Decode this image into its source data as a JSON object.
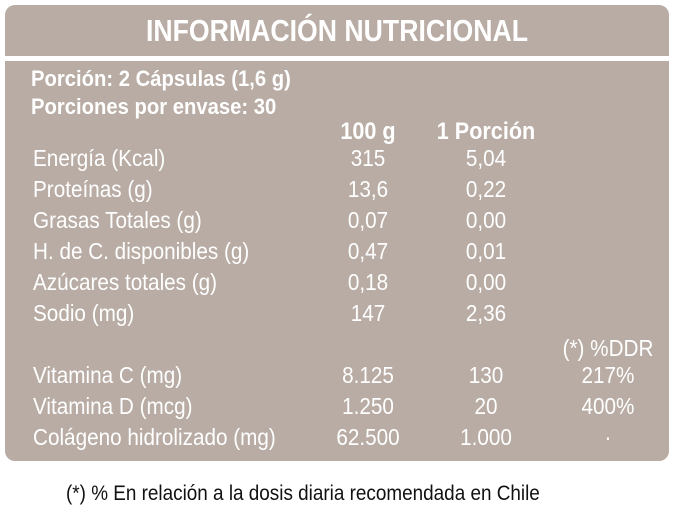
{
  "title": "INFORMACIÓN NUTRICIONAL",
  "serving_size": "Porción: 2 Cápsulas (1,6 g)",
  "servings_per_container": "Porciones por envase: 30",
  "columns": {
    "per_100g": "100 g",
    "per_serving": "1 Porción",
    "ddr": "(*) %DDR"
  },
  "nutrients": [
    {
      "name": "Energía (Kcal)",
      "per_100g": "315",
      "per_serving": "5,04"
    },
    {
      "name": "Proteínas (g)",
      "per_100g": "13,6",
      "per_serving": "0,22"
    },
    {
      "name": "Grasas Totales (g)",
      "per_100g": "0,07",
      "per_serving": "0,00"
    },
    {
      "name": "H. de C. disponibles (g)",
      "per_100g": "0,47",
      "per_serving": "0,01"
    },
    {
      "name": "Azúcares totales (g)",
      "per_100g": "0,18",
      "per_serving": "0,00"
    },
    {
      "name": "Sodio (mg)",
      "per_100g": "147",
      "per_serving": "2,36"
    }
  ],
  "micronutrients": [
    {
      "name": "Vitamina C (mg)",
      "per_100g": "8.125",
      "per_serving": "130",
      "ddr": "217%"
    },
    {
      "name": "Vitamina D (mcg)",
      "per_100g": "1.250",
      "per_serving": "20",
      "ddr": "400%"
    },
    {
      "name": "Colágeno hidrolizado (mg)",
      "per_100g": "62.500",
      "per_serving": "1.000",
      "ddr": "·"
    }
  ],
  "footnote": "(*) % En relación a la dosis diaria recomendada en Chile",
  "colors": {
    "panel": "#b8aca4",
    "text": "#ffffff",
    "footnote": "#111111"
  }
}
